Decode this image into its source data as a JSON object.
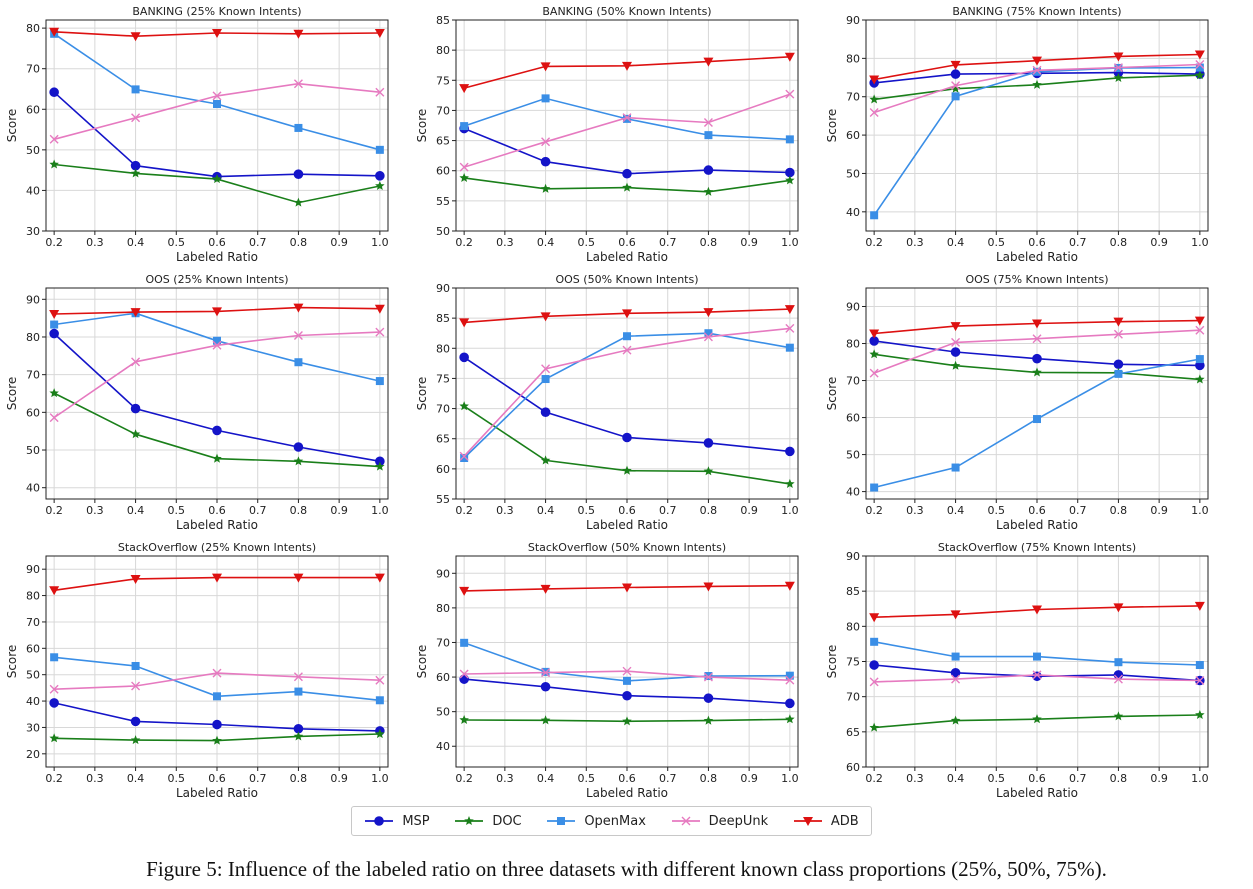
{
  "figure_caption": "Figure 5: Influence of the labeled ratio on three datasets with different known class proportions (25%, 50%, 75%).",
  "legend": [
    {
      "name": "MSP",
      "color": "#1414c8",
      "marker": "circle"
    },
    {
      "name": "DOC",
      "color": "#1a7f1a",
      "marker": "star"
    },
    {
      "name": "OpenMax",
      "color": "#3a8ee6",
      "marker": "square"
    },
    {
      "name": "DeepUnk",
      "color": "#e67ac0",
      "marker": "x"
    },
    {
      "name": "ADB",
      "color": "#dd1111",
      "marker": "triangle-down"
    }
  ],
  "chart_data": [
    {
      "type": "line",
      "title": "BANKING (25% Known Intents)",
      "xlabel": "Labeled Ratio",
      "ylabel": "Score",
      "x": [
        0.2,
        0.4,
        0.6,
        0.8,
        1.0
      ],
      "xticks": [
        "0.2",
        "0.3",
        "0.4",
        "0.5",
        "0.6",
        "0.7",
        "0.8",
        "0.9",
        "1.0"
      ],
      "ylim": [
        30,
        82
      ],
      "yticks": [
        30,
        40,
        50,
        60,
        70,
        80
      ],
      "series": [
        {
          "name": "MSP",
          "values": [
            64.2,
            46.1,
            43.4,
            44.0,
            43.6
          ]
        },
        {
          "name": "DOC",
          "values": [
            46.4,
            44.2,
            42.8,
            37.0,
            41.1
          ]
        },
        {
          "name": "OpenMax",
          "values": [
            78.6,
            64.9,
            61.3,
            55.4,
            50.0
          ]
        },
        {
          "name": "DeepUnk",
          "values": [
            52.6,
            57.9,
            63.3,
            66.3,
            64.2
          ]
        },
        {
          "name": "ADB",
          "values": [
            79.1,
            78.0,
            78.8,
            78.6,
            78.8
          ]
        }
      ]
    },
    {
      "type": "line",
      "title": "BANKING (50% Known Intents)",
      "xlabel": "Labeled Ratio",
      "ylabel": "Score",
      "x": [
        0.2,
        0.4,
        0.6,
        0.8,
        1.0
      ],
      "xticks": [
        "0.2",
        "0.3",
        "0.4",
        "0.5",
        "0.6",
        "0.7",
        "0.8",
        "0.9",
        "1.0"
      ],
      "ylim": [
        50,
        85
      ],
      "yticks": [
        50,
        55,
        60,
        65,
        70,
        75,
        80,
        85
      ],
      "series": [
        {
          "name": "MSP",
          "values": [
            67.0,
            61.5,
            59.5,
            60.1,
            59.7
          ]
        },
        {
          "name": "DOC",
          "values": [
            58.8,
            57.0,
            57.2,
            56.5,
            58.4
          ]
        },
        {
          "name": "OpenMax",
          "values": [
            67.4,
            72.0,
            68.6,
            65.9,
            65.2
          ]
        },
        {
          "name": "DeepUnk",
          "values": [
            60.6,
            64.8,
            68.8,
            68.0,
            72.7
          ]
        },
        {
          "name": "ADB",
          "values": [
            73.7,
            77.3,
            77.4,
            78.1,
            78.9
          ]
        }
      ]
    },
    {
      "type": "line",
      "title": "BANKING (75% Known Intents)",
      "xlabel": "Labeled Ratio",
      "ylabel": "Score",
      "x": [
        0.2,
        0.4,
        0.6,
        0.8,
        1.0
      ],
      "xticks": [
        "0.2",
        "0.3",
        "0.4",
        "0.5",
        "0.6",
        "0.7",
        "0.8",
        "0.9",
        "1.0"
      ],
      "ylim": [
        35,
        90
      ],
      "yticks": [
        40,
        50,
        60,
        70,
        80,
        90
      ],
      "series": [
        {
          "name": "MSP",
          "values": [
            73.6,
            75.9,
            76.1,
            76.3,
            75.9
          ]
        },
        {
          "name": "DOC",
          "values": [
            69.3,
            72.1,
            73.1,
            74.9,
            75.6
          ]
        },
        {
          "name": "OpenMax",
          "values": [
            39.1,
            70.1,
            76.5,
            77.5,
            77.6
          ]
        },
        {
          "name": "DeepUnk",
          "values": [
            65.9,
            72.9,
            76.9,
            77.6,
            78.4
          ]
        },
        {
          "name": "ADB",
          "values": [
            74.5,
            78.3,
            79.4,
            80.5,
            81.0
          ]
        }
      ]
    },
    {
      "type": "line",
      "title": "OOS (25% Known Intents)",
      "xlabel": "Labeled Ratio",
      "ylabel": "Score",
      "x": [
        0.2,
        0.4,
        0.6,
        0.8,
        1.0
      ],
      "xticks": [
        "0.2",
        "0.3",
        "0.4",
        "0.5",
        "0.6",
        "0.7",
        "0.8",
        "0.9",
        "1.0"
      ],
      "ylim": [
        37,
        93
      ],
      "yticks": [
        40,
        50,
        60,
        70,
        80,
        90
      ],
      "series": [
        {
          "name": "MSP",
          "values": [
            80.9,
            61.0,
            55.2,
            50.8,
            47.0
          ]
        },
        {
          "name": "DOC",
          "values": [
            65.1,
            54.2,
            47.7,
            47.0,
            45.6
          ]
        },
        {
          "name": "OpenMax",
          "values": [
            83.3,
            86.3,
            79.0,
            73.3,
            68.3
          ]
        },
        {
          "name": "DeepUnk",
          "values": [
            58.6,
            73.4,
            77.8,
            80.4,
            81.3
          ]
        },
        {
          "name": "ADB",
          "values": [
            86.1,
            86.6,
            86.8,
            87.8,
            87.5
          ]
        }
      ]
    },
    {
      "type": "line",
      "title": "OOS (50% Known Intents)",
      "xlabel": "Labeled Ratio",
      "ylabel": "Score",
      "x": [
        0.2,
        0.4,
        0.6,
        0.8,
        1.0
      ],
      "xticks": [
        "0.2",
        "0.3",
        "0.4",
        "0.5",
        "0.6",
        "0.7",
        "0.8",
        "0.9",
        "1.0"
      ],
      "ylim": [
        55,
        90
      ],
      "yticks": [
        55,
        60,
        65,
        70,
        75,
        80,
        85,
        90
      ],
      "series": [
        {
          "name": "MSP",
          "values": [
            78.5,
            69.4,
            65.2,
            64.3,
            62.9
          ]
        },
        {
          "name": "DOC",
          "values": [
            70.4,
            61.4,
            59.7,
            59.6,
            57.5
          ]
        },
        {
          "name": "OpenMax",
          "values": [
            61.8,
            74.9,
            82.0,
            82.5,
            80.1
          ]
        },
        {
          "name": "DeepUnk",
          "values": [
            62.1,
            76.6,
            79.7,
            81.9,
            83.3
          ]
        },
        {
          "name": "ADB",
          "values": [
            84.3,
            85.3,
            85.8,
            86.0,
            86.5
          ]
        }
      ]
    },
    {
      "type": "line",
      "title": "OOS (75% Known Intents)",
      "xlabel": "Labeled Ratio",
      "ylabel": "Score",
      "x": [
        0.2,
        0.4,
        0.6,
        0.8,
        1.0
      ],
      "xticks": [
        "0.2",
        "0.3",
        "0.4",
        "0.5",
        "0.6",
        "0.7",
        "0.8",
        "0.9",
        "1.0"
      ],
      "ylim": [
        38,
        95
      ],
      "yticks": [
        40,
        50,
        60,
        70,
        80,
        90
      ],
      "series": [
        {
          "name": "MSP",
          "values": [
            80.7,
            77.7,
            75.9,
            74.4,
            74.1
          ]
        },
        {
          "name": "DOC",
          "values": [
            77.1,
            74.0,
            72.2,
            72.1,
            70.3
          ]
        },
        {
          "name": "OpenMax",
          "values": [
            41.1,
            46.5,
            59.6,
            71.8,
            75.8
          ]
        },
        {
          "name": "DeepUnk",
          "values": [
            72.0,
            80.3,
            81.3,
            82.5,
            83.6
          ]
        },
        {
          "name": "ADB",
          "values": [
            82.7,
            84.7,
            85.4,
            85.9,
            86.2
          ]
        }
      ]
    },
    {
      "type": "line",
      "title": "StackOverflow (25% Known Intents)",
      "xlabel": "Labeled Ratio",
      "ylabel": "Score",
      "x": [
        0.2,
        0.4,
        0.6,
        0.8,
        1.0
      ],
      "xticks": [
        "0.2",
        "0.3",
        "0.4",
        "0.5",
        "0.6",
        "0.7",
        "0.8",
        "0.9",
        "1.0"
      ],
      "ylim": [
        15,
        95
      ],
      "yticks": [
        20,
        30,
        40,
        50,
        60,
        70,
        80,
        90
      ],
      "series": [
        {
          "name": "MSP",
          "values": [
            39.3,
            32.3,
            31.1,
            29.5,
            28.7
          ]
        },
        {
          "name": "DOC",
          "values": [
            25.9,
            25.2,
            25.0,
            26.6,
            27.5
          ]
        },
        {
          "name": "OpenMax",
          "values": [
            56.6,
            53.3,
            41.8,
            43.6,
            40.3
          ]
        },
        {
          "name": "DeepUnk",
          "values": [
            44.5,
            45.7,
            50.6,
            49.2,
            47.9
          ]
        },
        {
          "name": "ADB",
          "values": [
            82.0,
            86.3,
            86.8,
            86.8,
            86.8
          ]
        }
      ]
    },
    {
      "type": "line",
      "title": "StackOverflow (50% Known Intents)",
      "xlabel": "Labeled Ratio",
      "ylabel": "Score",
      "x": [
        0.2,
        0.4,
        0.6,
        0.8,
        1.0
      ],
      "xticks": [
        "0.2",
        "0.3",
        "0.4",
        "0.5",
        "0.6",
        "0.7",
        "0.8",
        "0.9",
        "1.0"
      ],
      "ylim": [
        34,
        95
      ],
      "yticks": [
        40,
        50,
        60,
        70,
        80,
        90
      ],
      "series": [
        {
          "name": "MSP",
          "values": [
            59.4,
            57.2,
            54.6,
            53.9,
            52.4
          ]
        },
        {
          "name": "DOC",
          "values": [
            47.6,
            47.5,
            47.2,
            47.4,
            47.8
          ]
        },
        {
          "name": "OpenMax",
          "values": [
            69.9,
            61.5,
            58.9,
            60.3,
            60.4
          ]
        },
        {
          "name": "DeepUnk",
          "values": [
            60.9,
            61.3,
            61.7,
            60.0,
            59.1
          ]
        },
        {
          "name": "ADB",
          "values": [
            84.9,
            85.5,
            85.9,
            86.2,
            86.4
          ]
        }
      ]
    },
    {
      "type": "line",
      "title": "StackOverflow (75% Known Intents)",
      "xlabel": "Labeled Ratio",
      "ylabel": "Score",
      "x": [
        0.2,
        0.4,
        0.6,
        0.8,
        1.0
      ],
      "xticks": [
        "0.2",
        "0.3",
        "0.4",
        "0.5",
        "0.6",
        "0.7",
        "0.8",
        "0.9",
        "1.0"
      ],
      "ylim": [
        60,
        90
      ],
      "yticks": [
        60,
        65,
        70,
        75,
        80,
        85,
        90
      ],
      "series": [
        {
          "name": "MSP",
          "values": [
            74.5,
            73.4,
            72.9,
            73.1,
            72.3
          ]
        },
        {
          "name": "DOC",
          "values": [
            65.6,
            66.6,
            66.8,
            67.2,
            67.4
          ]
        },
        {
          "name": "OpenMax",
          "values": [
            77.8,
            75.7,
            75.7,
            74.9,
            74.5
          ]
        },
        {
          "name": "DeepUnk",
          "values": [
            72.1,
            72.5,
            73.1,
            72.5,
            72.3
          ]
        },
        {
          "name": "ADB",
          "values": [
            81.3,
            81.7,
            82.4,
            82.7,
            82.9
          ]
        }
      ]
    }
  ]
}
